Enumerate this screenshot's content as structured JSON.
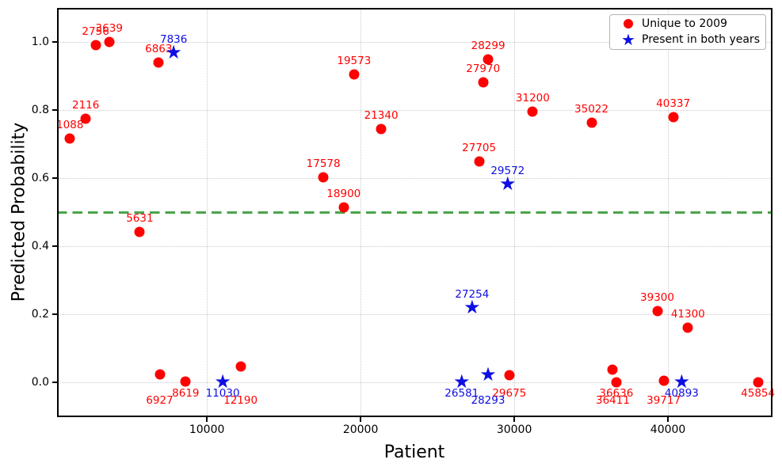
{
  "chart_data": {
    "type": "scatter",
    "xlabel": "Patient",
    "ylabel": "Predicted Probability",
    "xlim": [
      250,
      46800
    ],
    "ylim": [
      -0.102,
      1.1
    ],
    "grid": "dotted",
    "grid_color": "#c9c9c9",
    "x_ticks": [
      {
        "value": 10000,
        "label": "10000"
      },
      {
        "value": 20000,
        "label": "20000"
      },
      {
        "value": 30000,
        "label": "30000"
      },
      {
        "value": 40000,
        "label": "40000"
      }
    ],
    "y_ticks": [
      {
        "value": 0.0,
        "label": "0.0"
      },
      {
        "value": 0.2,
        "label": "0.2"
      },
      {
        "value": 0.4,
        "label": "0.4"
      },
      {
        "value": 0.6,
        "label": "0.6"
      },
      {
        "value": 0.8,
        "label": "0.8"
      },
      {
        "value": 1.0,
        "label": "1.0"
      }
    ],
    "threshold_line": {
      "y": 0.5,
      "color": "#4aa449",
      "style": "dashed"
    },
    "legend_position": "upper right",
    "series": [
      {
        "name": "Unique to 2009",
        "marker": "circle",
        "color": "#ff0000",
        "points": [
          {
            "patient": 1088,
            "prob": 0.716,
            "label": "1088",
            "label_pos": "above"
          },
          {
            "patient": 2116,
            "prob": 0.774,
            "label": "2116",
            "label_pos": "above"
          },
          {
            "patient": 2756,
            "prob": 0.991,
            "label": "2756",
            "label_pos": "above"
          },
          {
            "patient": 3639,
            "prob": 1.0,
            "label": "3639",
            "label_pos": "above"
          },
          {
            "patient": 5631,
            "prob": 0.442,
            "label": "5631",
            "label_pos": "above"
          },
          {
            "patient": 6863,
            "prob": 0.939,
            "label": "6863",
            "label_pos": "above"
          },
          {
            "patient": 6927,
            "prob": 0.024,
            "label": "6927",
            "label_pos": "below2"
          },
          {
            "patient": 8619,
            "prob": 0.002,
            "label": "8619",
            "label_pos": "below"
          },
          {
            "patient": 12190,
            "prob": 0.046,
            "label": "12190",
            "label_pos": "below2"
          },
          {
            "patient": 17578,
            "prob": 0.602,
            "label": "17578",
            "label_pos": "above"
          },
          {
            "patient": 18900,
            "prob": 0.515,
            "label": "18900",
            "label_pos": "above"
          },
          {
            "patient": 19573,
            "prob": 0.904,
            "label": "19573",
            "label_pos": "above"
          },
          {
            "patient": 21340,
            "prob": 0.745,
            "label": "21340",
            "label_pos": "above"
          },
          {
            "patient": 27705,
            "prob": 0.648,
            "label": "27705",
            "label_pos": "above"
          },
          {
            "patient": 27970,
            "prob": 0.881,
            "label": "27970",
            "label_pos": "above"
          },
          {
            "patient": 28299,
            "prob": 0.949,
            "label": "28299",
            "label_pos": "above"
          },
          {
            "patient": 29675,
            "prob": 0.022,
            "label": "29675",
            "label_pos": "below"
          },
          {
            "patient": 31200,
            "prob": 0.795,
            "label": "31200",
            "label_pos": "above"
          },
          {
            "patient": 35022,
            "prob": 0.764,
            "label": "35022",
            "label_pos": "above"
          },
          {
            "patient": 36411,
            "prob": 0.038,
            "label": "36411",
            "label_pos": "below2"
          },
          {
            "patient": 36636,
            "prob": 0.0,
            "label": "36636",
            "label_pos": "below"
          },
          {
            "patient": 39300,
            "prob": 0.209,
            "label": "39300",
            "label_pos": "above"
          },
          {
            "patient": 39717,
            "prob": 0.005,
            "label": "39717",
            "label_pos": "below2"
          },
          {
            "patient": 40337,
            "prob": 0.778,
            "label": "40337",
            "label_pos": "above"
          },
          {
            "patient": 41300,
            "prob": 0.16,
            "label": "41300",
            "label_pos": "above"
          },
          {
            "patient": 45854,
            "prob": 0.001,
            "label": "45854",
            "label_pos": "below"
          }
        ]
      },
      {
        "name": "Present in both years",
        "marker": "star",
        "color": "#0e0ee4",
        "points": [
          {
            "patient": 7836,
            "prob": 0.967,
            "label": "7836",
            "label_pos": "above"
          },
          {
            "patient": 11030,
            "prob": 0.0,
            "label": "11030",
            "label_pos": "below"
          },
          {
            "patient": 26581,
            "prob": 0.0,
            "label": "26581",
            "label_pos": "below"
          },
          {
            "patient": 27254,
            "prob": 0.218,
            "label": "27254",
            "label_pos": "above"
          },
          {
            "patient": 28293,
            "prob": 0.022,
            "label": "28293",
            "label_pos": "below2"
          },
          {
            "patient": 29572,
            "prob": 0.581,
            "label": "29572",
            "label_pos": "above"
          },
          {
            "patient": 40893,
            "prob": 0.0,
            "label": "40893",
            "label_pos": "below"
          }
        ]
      }
    ]
  }
}
